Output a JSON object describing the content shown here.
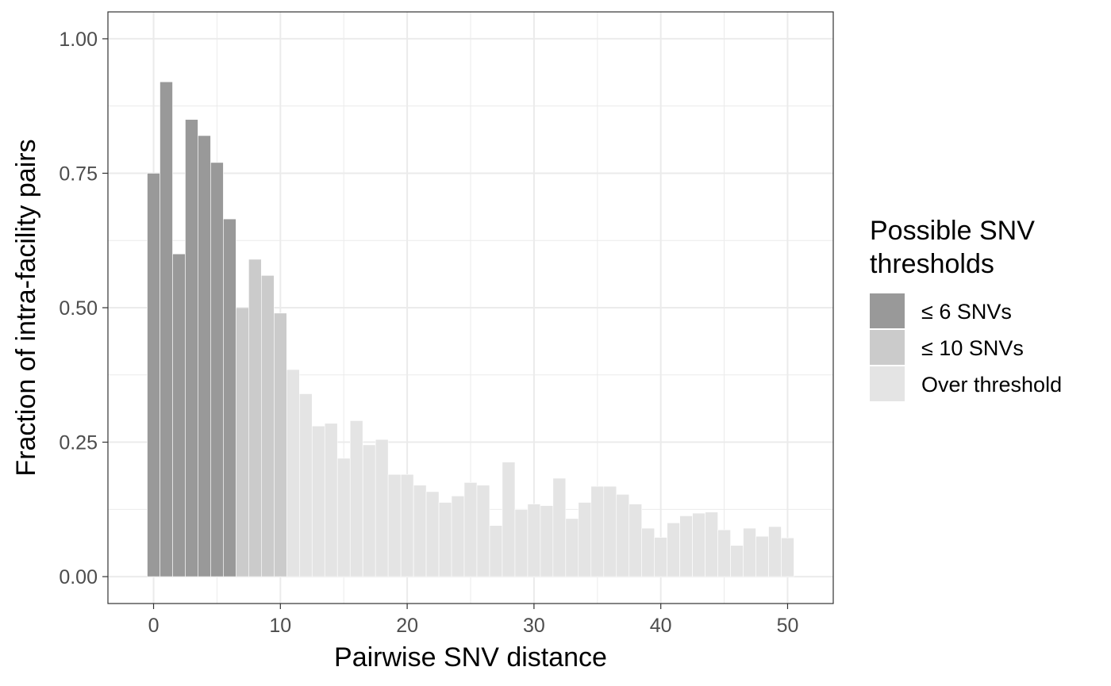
{
  "chart_data": {
    "type": "bar",
    "xlabel": "Pairwise SNV distance",
    "ylabel": "Fraction of intra-facility pairs",
    "xlim": [
      -3.6,
      53.6
    ],
    "ylim": [
      -0.05,
      1.05
    ],
    "x_ticks": [
      0,
      10,
      20,
      30,
      40,
      50
    ],
    "x_tick_labels": [
      "0",
      "10",
      "20",
      "30",
      "40",
      "50"
    ],
    "y_ticks": [
      0,
      0.25,
      0.5,
      0.75,
      1.0
    ],
    "y_tick_labels": [
      "0.00",
      "0.25",
      "0.50",
      "0.75",
      "1.00"
    ],
    "grid": true,
    "legend": {
      "title_lines": [
        "Possible SNV",
        "thresholds"
      ],
      "placement": "right",
      "items": [
        {
          "label": "≤ 6 SNVs",
          "color": "#999999"
        },
        {
          "label": "≤ 10 SNVs",
          "color": "#cbcbcb"
        },
        {
          "label": "Over threshold",
          "color": "#e4e4e4"
        }
      ]
    },
    "colors": {
      "le6": "#999999",
      "le10": "#cbcbcb",
      "over": "#e4e4e4",
      "grid": "#ebebeb",
      "panel_border": "#333333"
    },
    "x": [
      0,
      1,
      2,
      3,
      4,
      5,
      6,
      7,
      8,
      9,
      10,
      11,
      12,
      13,
      14,
      15,
      16,
      17,
      18,
      19,
      20,
      21,
      22,
      23,
      24,
      25,
      26,
      27,
      28,
      29,
      30,
      31,
      32,
      33,
      34,
      35,
      36,
      37,
      38,
      39,
      40,
      41,
      42,
      43,
      44,
      45,
      46,
      47,
      48,
      49,
      50
    ],
    "values": [
      0.75,
      0.92,
      0.6,
      0.85,
      0.82,
      0.77,
      0.665,
      0.5,
      0.59,
      0.56,
      0.49,
      0.385,
      0.34,
      0.28,
      0.285,
      0.22,
      0.29,
      0.245,
      0.255,
      0.19,
      0.19,
      0.17,
      0.158,
      0.138,
      0.15,
      0.175,
      0.17,
      0.095,
      0.213,
      0.125,
      0.135,
      0.132,
      0.183,
      0.108,
      0.138,
      0.168,
      0.168,
      0.153,
      0.135,
      0.09,
      0.073,
      0.1,
      0.113,
      0.118,
      0.12,
      0.087,
      0.058,
      0.09,
      0.075,
      0.093,
      0.072
    ],
    "groups": [
      "le6",
      "le6",
      "le6",
      "le6",
      "le6",
      "le6",
      "le6",
      "le10",
      "le10",
      "le10",
      "le10",
      "over",
      "over",
      "over",
      "over",
      "over",
      "over",
      "over",
      "over",
      "over",
      "over",
      "over",
      "over",
      "over",
      "over",
      "over",
      "over",
      "over",
      "over",
      "over",
      "over",
      "over",
      "over",
      "over",
      "over",
      "over",
      "over",
      "over",
      "over",
      "over",
      "over",
      "over",
      "over",
      "over",
      "over",
      "over",
      "over",
      "over",
      "over",
      "over",
      "over"
    ]
  }
}
